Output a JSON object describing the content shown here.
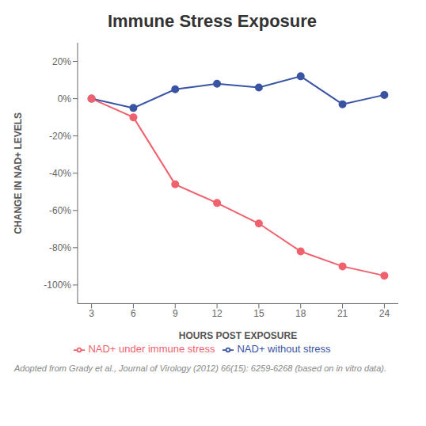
{
  "chart_data": {
    "type": "line",
    "title": "Immune Stress Exposure",
    "xlabel": "HOURS  POST  EXPOSURE",
    "ylabel": "CHANGE IN NAD+ LEVELS",
    "x": [
      3,
      6,
      9,
      12,
      15,
      18,
      21,
      24
    ],
    "series": [
      {
        "name": "NAD+ without stress",
        "color": "#3a54a4",
        "marker": "circle",
        "values": [
          0,
          -5,
          5,
          8,
          6,
          12,
          -3,
          2
        ]
      },
      {
        "name": "NAD+ under immune stress",
        "color": "#f0616e",
        "marker": "circle",
        "values": [
          0,
          -10,
          -46,
          -56,
          -67,
          -82,
          -90,
          -95
        ]
      }
    ],
    "xlim": [
      2,
      25
    ],
    "ylim": [
      -110,
      30
    ],
    "xticks": [
      3,
      6,
      9,
      12,
      15,
      18,
      21,
      24
    ],
    "yticks": [
      {
        "value": 20,
        "label": "20%"
      },
      {
        "value": 0,
        "label": "0%"
      },
      {
        "value": -20,
        "label": "-20%"
      },
      {
        "value": -40,
        "label": "-40%"
      },
      {
        "value": -60,
        "label": "-60%"
      },
      {
        "value": -80,
        "label": "-80%"
      },
      {
        "value": -100,
        "label": "-100%"
      }
    ],
    "grid": false,
    "legend": "bottom",
    "annotations": [
      "Adopted from Grady et al., Journal of Virology (2012) 66(15): 6259-6268 (based on in vitro data)."
    ]
  }
}
